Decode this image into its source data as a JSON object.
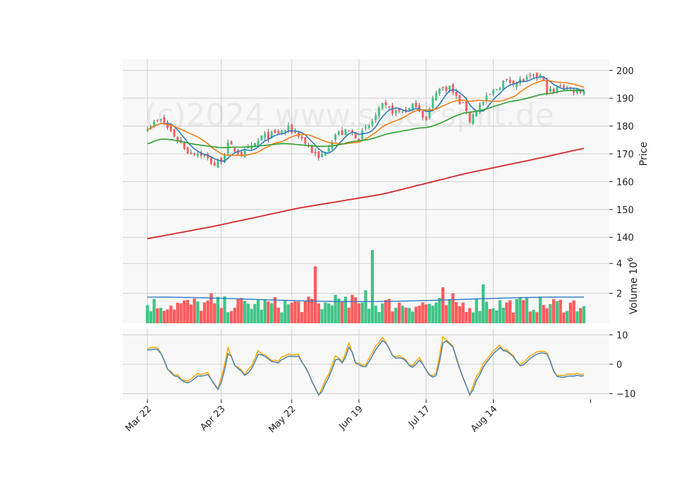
{
  "watermark": "(c)2024 www.stocksplit.de",
  "colors": {
    "up": "#3fc487",
    "down": "#ff5b5b",
    "sma10": "#2e7bbf",
    "sma20": "#f07f17",
    "sma50": "#2ca02c",
    "sma200": "#d62728",
    "vol_ma": "#2e7bbf",
    "osc1": "#4682b4",
    "osc2": "#ffa500",
    "panel_bg": "#f8f8f8",
    "grid": "#cfcfcf"
  },
  "chart_data": {
    "type": "candlestick",
    "x_tick_labels": [
      "Mar 22",
      "Apr 23",
      "May 22",
      "Jun 19",
      "Jul 17",
      "Aug 14"
    ],
    "x_tick_sessions": [
      0,
      22,
      43,
      63,
      83,
      103
    ],
    "session_count": 131,
    "price_panel": {
      "ylabel": "Price",
      "ylim": [
        136,
        204
      ],
      "yticks": [
        140,
        150,
        160,
        170,
        180,
        190,
        200
      ],
      "close_anchors": [
        [
          0,
          180
        ],
        [
          4,
          182
        ],
        [
          7,
          178
        ],
        [
          12,
          171
        ],
        [
          16,
          170
        ],
        [
          20,
          166
        ],
        [
          22,
          168
        ],
        [
          24,
          173
        ],
        [
          28,
          170
        ],
        [
          31,
          172
        ],
        [
          34,
          176
        ],
        [
          38,
          177
        ],
        [
          42,
          179
        ],
        [
          45,
          177
        ],
        [
          49,
          171
        ],
        [
          51,
          168
        ],
        [
          56,
          177
        ],
        [
          60,
          178
        ],
        [
          63,
          176
        ],
        [
          66,
          180
        ],
        [
          70,
          187
        ],
        [
          74,
          185
        ],
        [
          78,
          186
        ],
        [
          80,
          188
        ],
        [
          83,
          182
        ],
        [
          86,
          193
        ],
        [
          90,
          194
        ],
        [
          92,
          190
        ],
        [
          95,
          186
        ],
        [
          96,
          182
        ],
        [
          98,
          186
        ],
        [
          102,
          191
        ],
        [
          106,
          196
        ],
        [
          110,
          196
        ],
        [
          114,
          197
        ],
        [
          117,
          198
        ],
        [
          119,
          193
        ],
        [
          121,
          192
        ],
        [
          123,
          195
        ],
        [
          126,
          193
        ],
        [
          128,
          193
        ],
        [
          130,
          193
        ]
      ],
      "sma200_anchors": [
        [
          0,
          139.5
        ],
        [
          20,
          144
        ],
        [
          45,
          150.5
        ],
        [
          70,
          155.5
        ],
        [
          95,
          163
        ],
        [
          115,
          168
        ],
        [
          130,
          172
        ]
      ]
    },
    "volume_panel": {
      "ylabel": "Volume  10^6",
      "ylim": [
        0,
        5
      ],
      "yticks": [
        2,
        4
      ],
      "ytick_labels": [
        "2",
        "4"
      ],
      "spikes": [
        [
          19,
          2.0
        ],
        [
          50,
          3.8
        ],
        [
          56,
          1.9
        ],
        [
          61,
          1.9
        ],
        [
          65,
          2.2
        ],
        [
          67,
          4.9
        ],
        [
          88,
          2.4
        ],
        [
          91,
          2.0
        ],
        [
          100,
          2.6
        ]
      ]
    },
    "oscillator_panel": {
      "ylim": [
        -12,
        12
      ],
      "yticks": [
        -10,
        0,
        10
      ],
      "ytick_labels": [
        "−10",
        "0",
        "10"
      ],
      "anchors": [
        [
          0,
          5
        ],
        [
          3,
          6
        ],
        [
          6,
          -2
        ],
        [
          9,
          -4
        ],
        [
          12,
          -6
        ],
        [
          14,
          -4
        ],
        [
          18,
          -3
        ],
        [
          21,
          -8
        ],
        [
          22,
          -5
        ],
        [
          24,
          5
        ],
        [
          26,
          0
        ],
        [
          29,
          -3
        ],
        [
          31,
          -1
        ],
        [
          33,
          5
        ],
        [
          35,
          3
        ],
        [
          38,
          1
        ],
        [
          42,
          3
        ],
        [
          45,
          3
        ],
        [
          48,
          -3
        ],
        [
          51,
          -10
        ],
        [
          54,
          -3
        ],
        [
          56,
          3
        ],
        [
          58,
          1
        ],
        [
          60,
          7
        ],
        [
          62,
          0
        ],
        [
          65,
          0
        ],
        [
          68,
          6
        ],
        [
          70,
          9
        ],
        [
          73,
          3
        ],
        [
          76,
          2
        ],
        [
          79,
          -1
        ],
        [
          81,
          2
        ],
        [
          84,
          -4
        ],
        [
          86,
          -3
        ],
        [
          88,
          9
        ],
        [
          91,
          6
        ],
        [
          94,
          -5
        ],
        [
          96,
          -10
        ],
        [
          99,
          -2
        ],
        [
          102,
          3
        ],
        [
          105,
          6
        ],
        [
          108,
          4
        ],
        [
          111,
          0
        ],
        [
          114,
          3
        ],
        [
          117,
          5
        ],
        [
          119,
          4
        ],
        [
          121,
          -3
        ],
        [
          124,
          -4
        ],
        [
          126,
          -3
        ],
        [
          130,
          -3
        ]
      ]
    }
  }
}
